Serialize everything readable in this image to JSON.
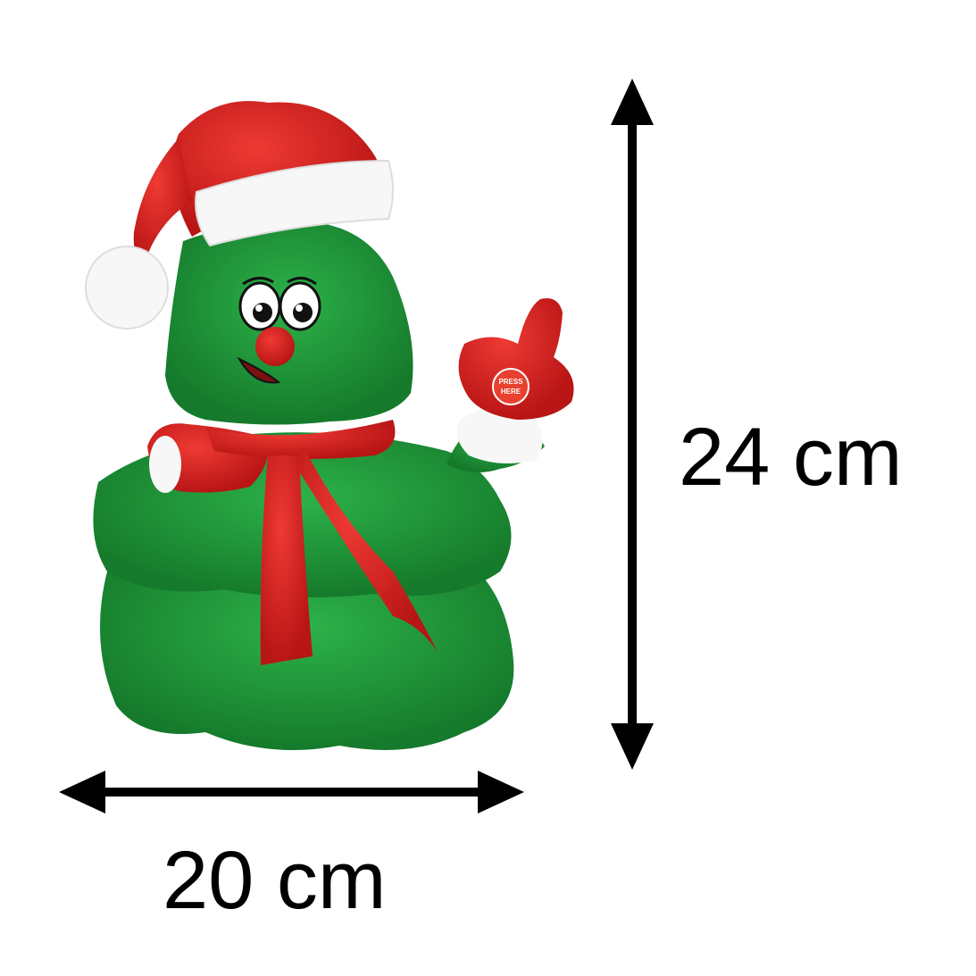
{
  "product": {
    "description_icon": "plush-christmas-tree-icon",
    "button_text": [
      "PRESS",
      "HERE"
    ]
  },
  "dimensions": {
    "height": "24 cm",
    "width": "20 cm"
  },
  "colors": {
    "tree_green": "#1e9a3a",
    "tree_green_dark": "#157a2b",
    "hat_red": "#d41f1f",
    "trim_white": "#f7f7f7",
    "arrow_black": "#000000"
  }
}
